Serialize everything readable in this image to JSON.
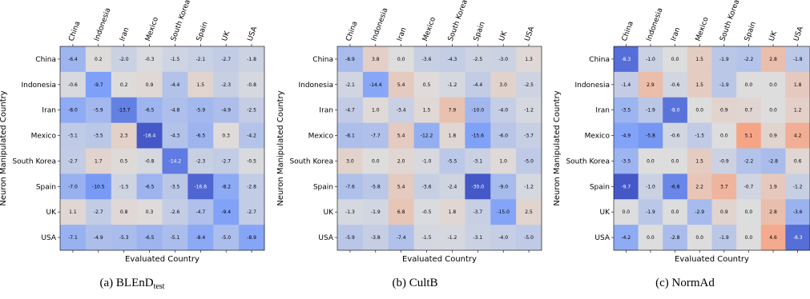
{
  "chart_data": [
    {
      "type": "heatmap",
      "caption": "(a) BLEnD",
      "caption_sub": "test",
      "xlabel": "Evaluated Country",
      "ylabel": "Neuron Manipulated Country",
      "x_categories": [
        "China",
        "Indonesia",
        "Iran",
        "Mexico",
        "South Korea",
        "Spain",
        "UK",
        "USA"
      ],
      "y_categories": [
        "China",
        "Indonesia",
        "Iran",
        "Mexico",
        "South Korea",
        "Spain",
        "UK",
        "USA"
      ],
      "values": [
        [
          -6.4,
          0.2,
          -2.0,
          -0.3,
          -1.5,
          -2.1,
          -2.7,
          -1.8
        ],
        [
          -0.6,
          -9.7,
          0.2,
          0.9,
          -4.4,
          1.5,
          -2.3,
          -0.8
        ],
        [
          -8.0,
          -5.9,
          -13.7,
          -6.5,
          -4.8,
          -5.9,
          -4.9,
          -2.5
        ],
        [
          -3.1,
          -3.5,
          2.3,
          -18.4,
          -4.3,
          -6.5,
          0.3,
          -4.2
        ],
        [
          -2.7,
          1.7,
          0.5,
          -0.8,
          -14.2,
          -2.3,
          -2.7,
          -0.5
        ],
        [
          -7.0,
          -10.5,
          -1.5,
          -6.5,
          -3.5,
          -16.8,
          -8.2,
          -2.8
        ],
        [
          1.1,
          -2.7,
          0.8,
          0.3,
          -2.6,
          -4.7,
          -9.4,
          -2.7
        ],
        [
          -7.1,
          -4.9,
          -5.3,
          -6.5,
          -5.1,
          -8.4,
          -5.0,
          -8.9
        ]
      ]
    },
    {
      "type": "heatmap",
      "caption": "(b) CultB",
      "caption_sub": "",
      "xlabel": "Evaluated Country",
      "ylabel": "Neuron Manipulated Country",
      "x_categories": [
        "China",
        "Indonesia",
        "Iran",
        "Mexico",
        "South Korea",
        "Spain",
        "UK",
        "USA"
      ],
      "y_categories": [
        "China",
        "Indonesia",
        "Iran",
        "Mexico",
        "South Korea",
        "Spain",
        "UK",
        "USA"
      ],
      "values": [
        [
          -8.9,
          3.8,
          0.0,
          -3.6,
          -4.3,
          -2.5,
          -3.0,
          1.3
        ],
        [
          -2.1,
          -14.4,
          5.4,
          0.5,
          -1.2,
          -4.4,
          3.0,
          -2.5
        ],
        [
          -4.7,
          1.0,
          -3.4,
          1.5,
          7.9,
          -10.0,
          -4.0,
          -1.2
        ],
        [
          -8.1,
          -7.7,
          5.4,
          -12.2,
          1.8,
          -15.6,
          -6.0,
          -3.7
        ],
        [
          3.0,
          0.0,
          2.0,
          -1.0,
          -5.5,
          -3.1,
          1.0,
          -5.0
        ],
        [
          -7.6,
          -5.8,
          5.4,
          -3.6,
          -2.4,
          -30.0,
          -9.0,
          -1.2
        ],
        [
          -1.3,
          -1.9,
          6.8,
          -0.5,
          1.8,
          -3.7,
          -15.0,
          2.5
        ],
        [
          -5.9,
          -3.8,
          -7.4,
          -1.5,
          -1.2,
          -3.1,
          -4.0,
          -5.0
        ]
      ]
    },
    {
      "type": "heatmap",
      "caption": "(c) NormAd",
      "caption_sub": "",
      "xlabel": "Evaluated Country",
      "ylabel": "Neuron Manipulated Country",
      "x_categories": [
        "China",
        "Indonesia",
        "Iran",
        "Mexico",
        "South Korea",
        "Spain",
        "UK",
        "USA"
      ],
      "y_categories": [
        "China",
        "Indonesia",
        "Iran",
        "Mexico",
        "South Korea",
        "Spain",
        "UK",
        "USA"
      ],
      "values": [
        [
          -8.3,
          -1.0,
          0.0,
          1.5,
          -1.9,
          -2.2,
          2.8,
          -1.8
        ],
        [
          -1.4,
          2.9,
          -0.6,
          1.5,
          -1.9,
          0.0,
          0.0,
          1.8
        ],
        [
          -3.5,
          -1.9,
          -8.0,
          0.0,
          0.9,
          0.7,
          0.0,
          1.2
        ],
        [
          -4.9,
          -5.8,
          -0.6,
          -1.5,
          0.0,
          5.1,
          0.9,
          4.2
        ],
        [
          -3.5,
          0.0,
          0.0,
          1.5,
          -0.9,
          -2.2,
          -2.8,
          0.6
        ],
        [
          -9.7,
          -1.0,
          -6.8,
          2.2,
          3.7,
          -0.7,
          1.9,
          -1.2
        ],
        [
          0.0,
          -1.9,
          0.0,
          -2.9,
          0.9,
          0.0,
          2.8,
          -3.6
        ],
        [
          -4.2,
          0.0,
          -2.8,
          0.0,
          -1.9,
          0.0,
          4.6,
          -8.3
        ]
      ]
    }
  ]
}
